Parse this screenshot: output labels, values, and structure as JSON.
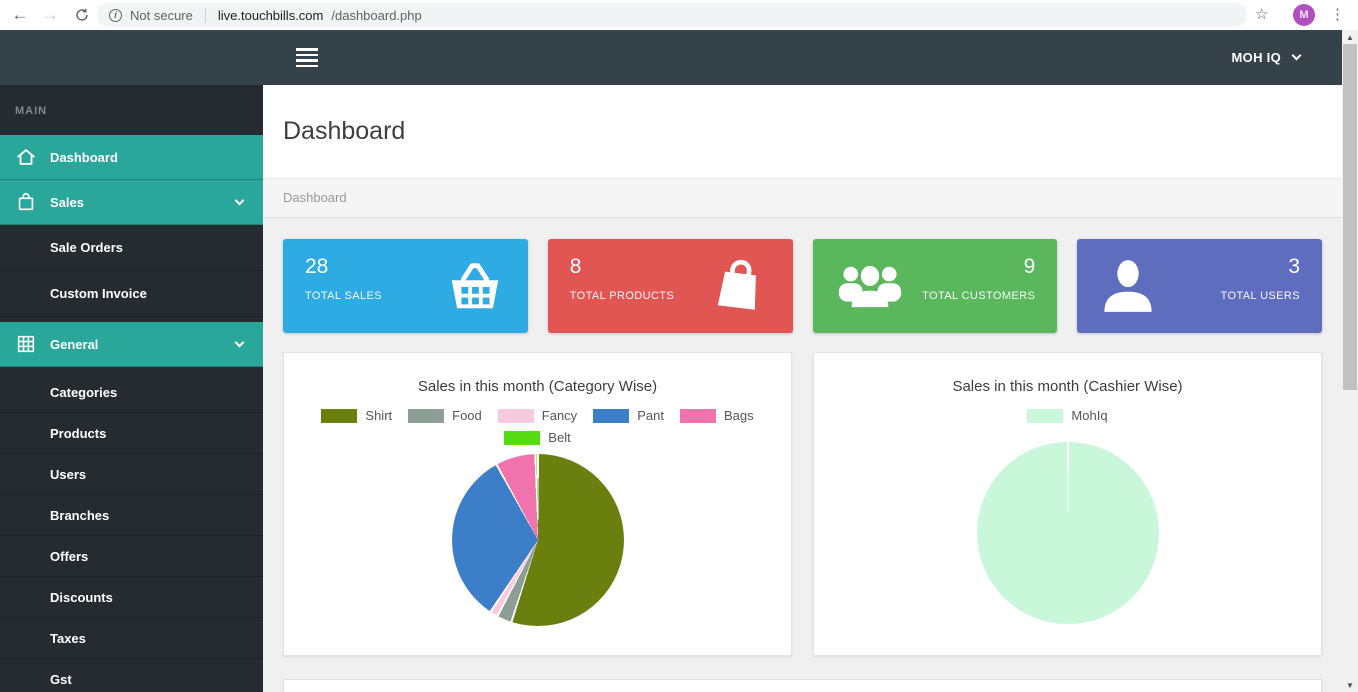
{
  "browser": {
    "security_label": "Not secure",
    "url_host": "live.touchbills.com",
    "url_path": "/dashboard.php",
    "profile_initial": "M",
    "profile_color": "#b14ec0"
  },
  "topbar": {
    "account_label": "MOH IQ"
  },
  "sidebar": {
    "section_label": "MAIN",
    "items": [
      {
        "label": "Dashboard"
      },
      {
        "label": "Sales"
      },
      {
        "label": "Sale Orders"
      },
      {
        "label": "Custom Invoice"
      },
      {
        "label": "General"
      },
      {
        "label": "Categories"
      },
      {
        "label": "Products"
      },
      {
        "label": "Users"
      },
      {
        "label": "Branches"
      },
      {
        "label": "Offers"
      },
      {
        "label": "Discounts"
      },
      {
        "label": "Taxes"
      },
      {
        "label": "Gst"
      }
    ]
  },
  "page_header": {
    "title": "Dashboard",
    "breadcrumb": "Dashboard"
  },
  "stats": {
    "cards": [
      {
        "value": "28",
        "label": "TOTAL SALES",
        "color": "#2dabe2",
        "icon": "shopping-basket",
        "icon_side": "right"
      },
      {
        "value": "8",
        "label": "TOTAL PRODUCTS",
        "color": "#e15653",
        "icon": "shopping-bag",
        "icon_side": "right"
      },
      {
        "value": "9",
        "label": "TOTAL CUSTOMERS",
        "color": "#5bb75c",
        "icon": "customers-group",
        "icon_side": "left"
      },
      {
        "value": "3",
        "label": "TOTAL USERS",
        "color": "#5f6dbe",
        "icon": "user",
        "icon_side": "left"
      }
    ]
  },
  "chart_data": [
    {
      "type": "pie",
      "title": "Sales in this month (Category Wise)",
      "labels": [
        "Shirt",
        "Food",
        "Fancy",
        "Pant",
        "Bags",
        "Belt"
      ],
      "values": [
        55,
        2.8,
        1.5,
        32.7,
        7.5,
        0.5
      ],
      "values_unit": "percent-of-pie-estimated",
      "colors": [
        "#6b7f0e",
        "#8d9e95",
        "#f9c9de",
        "#3c7ec8",
        "#f173ae",
        "#56dc13"
      ],
      "legend_position": "top",
      "slice_order": "clockwise-from-top"
    },
    {
      "type": "pie",
      "title": "Sales in this month (Cashier Wise)",
      "labels": [
        "MohIq"
      ],
      "values": [
        100
      ],
      "values_unit": "percent-of-pie-estimated",
      "colors": [
        "#c9f7da"
      ],
      "legend_position": "top",
      "slice_order": "clockwise-from-top"
    }
  ]
}
